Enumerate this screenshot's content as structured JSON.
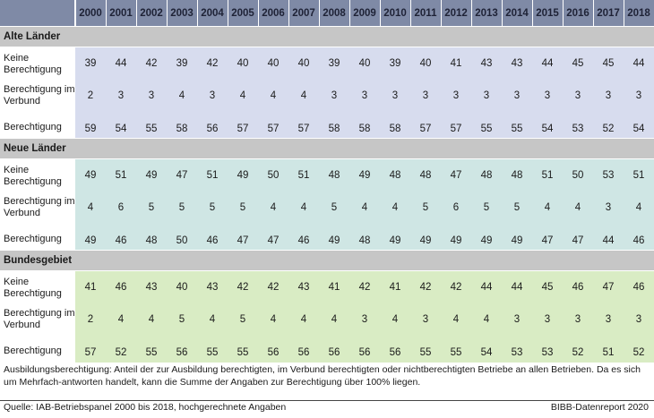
{
  "table": {
    "years": [
      "2000",
      "2001",
      "2002",
      "2003",
      "2004",
      "2005",
      "2006",
      "2007",
      "2008",
      "2009",
      "2010",
      "2011",
      "2012",
      "2013",
      "2014",
      "2015",
      "2016",
      "2017",
      "2018"
    ],
    "sections": [
      {
        "title": "Alte Länder",
        "theme": "a",
        "rows": [
          {
            "label": "Keine Berechtigung",
            "values": [
              39,
              44,
              42,
              39,
              42,
              40,
              40,
              40,
              39,
              40,
              39,
              40,
              41,
              43,
              43,
              44,
              45,
              45,
              44
            ]
          },
          {
            "label": "Berechtigung im Verbund",
            "values": [
              2,
              3,
              3,
              4,
              3,
              4,
              4,
              4,
              3,
              3,
              3,
              3,
              3,
              3,
              3,
              3,
              3,
              3,
              3
            ]
          },
          {
            "label": "Berechtigung",
            "values": [
              59,
              54,
              55,
              58,
              56,
              57,
              57,
              57,
              58,
              58,
              58,
              57,
              57,
              55,
              55,
              54,
              53,
              52,
              54
            ]
          }
        ]
      },
      {
        "title": "Neue Länder",
        "theme": "n",
        "rows": [
          {
            "label": "Keine Berechtigung",
            "values": [
              49,
              51,
              49,
              47,
              51,
              49,
              50,
              51,
              48,
              49,
              48,
              48,
              47,
              48,
              48,
              51,
              50,
              53,
              51
            ]
          },
          {
            "label": "Berechtigung im Verbund",
            "values": [
              4,
              6,
              5,
              5,
              5,
              5,
              4,
              4,
              5,
              4,
              4,
              5,
              6,
              5,
              5,
              4,
              4,
              3,
              4
            ]
          },
          {
            "label": "Berechtigung",
            "values": [
              49,
              46,
              48,
              50,
              46,
              47,
              47,
              46,
              49,
              48,
              49,
              49,
              49,
              49,
              49,
              47,
              47,
              44,
              46
            ]
          }
        ]
      },
      {
        "title": "Bundesgebiet",
        "theme": "b",
        "rows": [
          {
            "label": "Keine Berechtigung",
            "values": [
              41,
              46,
              43,
              40,
              43,
              42,
              42,
              43,
              41,
              42,
              41,
              42,
              42,
              44,
              44,
              45,
              46,
              47,
              46
            ]
          },
          {
            "label": "Berechtigung im Verbund",
            "values": [
              2,
              4,
              4,
              5,
              4,
              5,
              4,
              4,
              4,
              3,
              4,
              3,
              4,
              4,
              3,
              3,
              3,
              3,
              3
            ]
          },
          {
            "label": "Berechtigung",
            "values": [
              57,
              52,
              55,
              56,
              55,
              55,
              56,
              56,
              56,
              56,
              56,
              55,
              55,
              54,
              53,
              53,
              52,
              51,
              52
            ]
          }
        ]
      }
    ]
  },
  "footer": {
    "note": "Ausbildungsberechtigung: Anteil der zur Ausbildung berechtigten, im Verbund berechtigten oder nichtberechtigten Betriebe an allen Betrieben. Da es sich um Mehrfach-antworten handelt, kann die Summe der Angaben zur Berechtigung über 100% liegen.",
    "source": "Quelle: IAB-Betriebspanel 2000 bis 2018, hochgerechnete Angaben",
    "credit": "BIBB-Datenreport 2020"
  }
}
